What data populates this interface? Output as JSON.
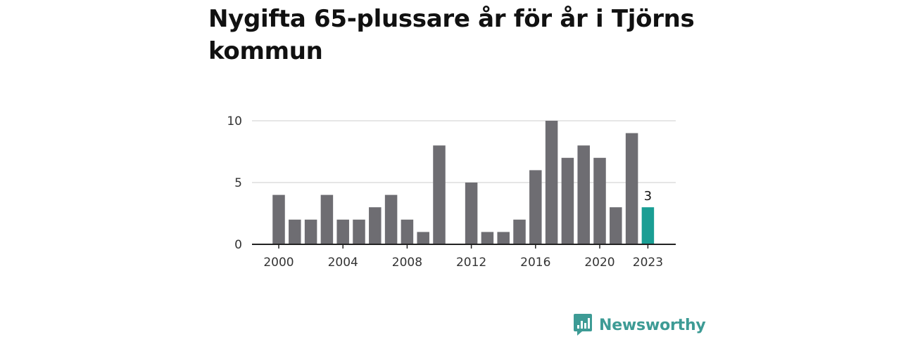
{
  "title": "Nygifta 65-plussare år för år i Tjörns kommun",
  "brand": {
    "name": "Newsworthy",
    "logo_icon": "bar-chart-speech-bubble-icon",
    "color": "#3d9b95"
  },
  "chart_data": {
    "type": "bar",
    "title": "Nygifta 65-plussare år för år i Tjörns kommun",
    "categories": [
      "2000",
      "2001",
      "2002",
      "2003",
      "2004",
      "2005",
      "2006",
      "2007",
      "2008",
      "2009",
      "2010",
      "2011",
      "2012",
      "2013",
      "2014",
      "2015",
      "2016",
      "2017",
      "2018",
      "2019",
      "2020",
      "2021",
      "2022",
      "2023"
    ],
    "values": [
      4,
      2,
      2,
      4,
      2,
      2,
      3,
      4,
      2,
      1,
      8,
      0,
      5,
      1,
      1,
      2,
      6,
      10,
      7,
      8,
      7,
      3,
      9,
      3
    ],
    "ylim": [
      0,
      10
    ],
    "yticks": [
      0,
      5,
      10
    ],
    "xtick_labels": [
      "2000",
      "2004",
      "2008",
      "2012",
      "2016",
      "2020",
      "2023"
    ],
    "highlight": {
      "category": "2023",
      "value": 3,
      "label": "3",
      "color": "#1a9e94"
    },
    "bar_color": "#6e6d72",
    "grid": true,
    "xlabel": "",
    "ylabel": ""
  }
}
